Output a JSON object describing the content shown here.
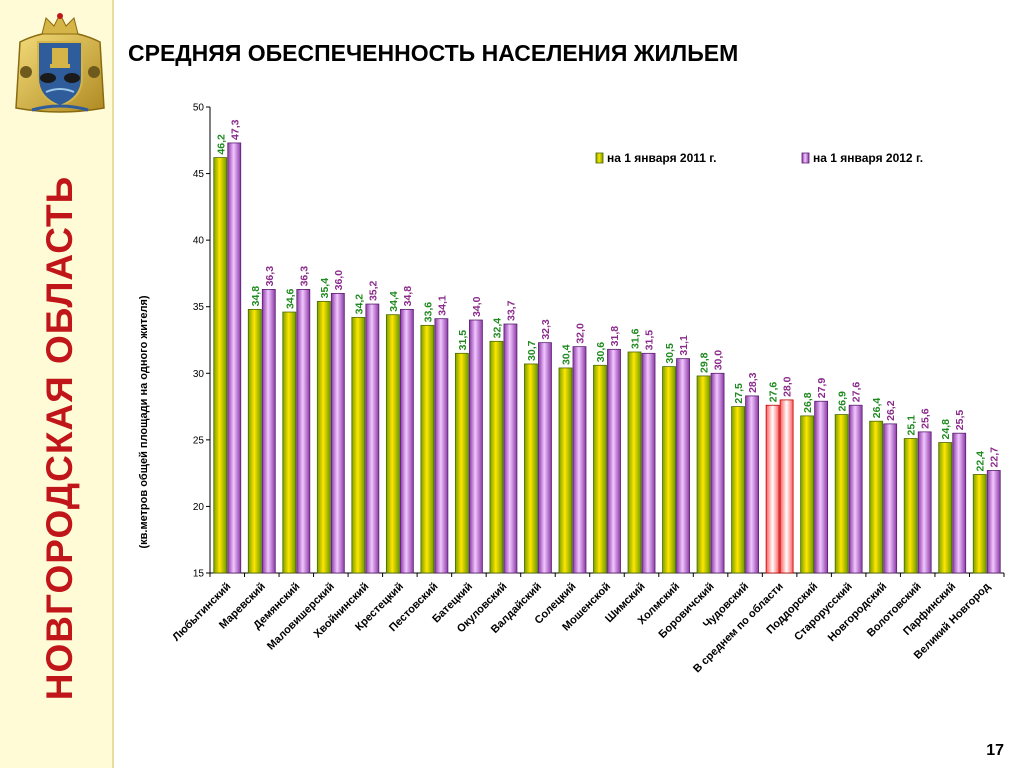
{
  "sidebar": {
    "region": "НОВГОРОДСКАЯ ОБЛАСТЬ"
  },
  "emblem": {
    "icon": "coat-of-arms-icon"
  },
  "header": {
    "title": "СРЕДНЯЯ ОБЕСПЕЧЕННОСТЬ НАСЕЛЕНИЯ ЖИЛЬЕМ"
  },
  "footer": {
    "page": "17"
  },
  "chart_data": {
    "type": "bar",
    "ylabel": "(кв.метров общей площади на одного жителя)",
    "xlabel": "",
    "ylim": [
      15,
      50
    ],
    "yticks": [
      15,
      20,
      25,
      30,
      35,
      40,
      45,
      50
    ],
    "grid": false,
    "legend_position": "top-right",
    "categories": [
      "Любытинский",
      "Маревский",
      "Демянский",
      "Маловишерский",
      "Хвойнинский",
      "Крестецкий",
      "Пестовский",
      "Батецкий",
      "Окуловский",
      "Валдайский",
      "Солецкий",
      "Мошенской",
      "Шимский",
      "Холмский",
      "Боровичский",
      "Чудовский",
      "В среднем по области",
      "Поддорский",
      "Старорусский",
      "Новгородский",
      "Волотовский",
      "Парфинский",
      "Великий Новгород"
    ],
    "series": [
      {
        "name": "на 1 января 2011 г.",
        "color": "#9bbb0c",
        "values": [
          46.2,
          34.8,
          34.6,
          35.4,
          34.2,
          34.4,
          33.6,
          31.5,
          32.4,
          30.7,
          30.4,
          30.6,
          31.6,
          30.5,
          29.8,
          27.5,
          27.6,
          26.8,
          26.9,
          26.4,
          25.1,
          24.8,
          22.4
        ],
        "labels": [
          "46,2",
          "34,8",
          "34,6",
          "35,4",
          "34,2",
          "34,4",
          "33,6",
          "31,5",
          "32,4",
          "30,7",
          "30,4",
          "30,6",
          "31,6",
          "30,5",
          "29,8",
          "27,5",
          "27,6",
          "26,8",
          "26,9",
          "26,4",
          "25,1",
          "24,8",
          "22,4"
        ]
      },
      {
        "name": "на 1 января 2012 г.",
        "color": "#a050b4",
        "values": [
          47.3,
          36.3,
          36.3,
          36.0,
          35.2,
          34.8,
          34.1,
          34.0,
          33.7,
          32.3,
          32.0,
          31.8,
          31.5,
          31.1,
          30.0,
          28.3,
          28.0,
          27.9,
          27.6,
          26.2,
          25.6,
          25.5,
          22.7
        ],
        "labels": [
          "47,3",
          "36,3",
          "36,3",
          "36,0",
          "35,2",
          "34,8",
          "34,1",
          "34,0",
          "33,7",
          "32,3",
          "32,0",
          "31,8",
          "31,5",
          "31,1",
          "30,0",
          "28,3",
          "28,0",
          "27,9",
          "27,6",
          "26,2",
          "25,6",
          "25,5",
          "22,7"
        ]
      }
    ],
    "highlight_category": "В среднем по области",
    "highlight_color": "#e02020"
  }
}
